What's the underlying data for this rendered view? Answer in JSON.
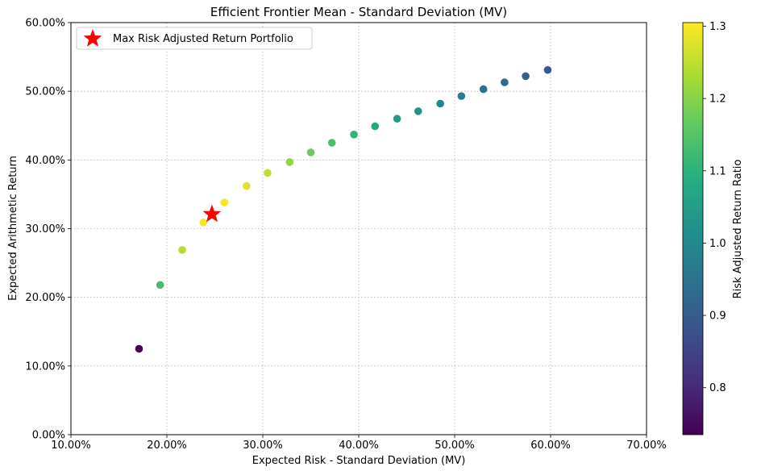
{
  "chart_data": {
    "type": "scatter",
    "title": "Efficient Frontier Mean - Standard Deviation (MV)",
    "xlabel": "Expected Risk - Standard Deviation (MV)",
    "ylabel": "Expected Arithmetic Return",
    "xlim": [
      0.1,
      0.7
    ],
    "ylim": [
      0.0,
      0.6
    ],
    "x_ticks": [
      {
        "value": 0.1,
        "label": "10.00%"
      },
      {
        "value": 0.2,
        "label": "20.00%"
      },
      {
        "value": 0.3,
        "label": "30.00%"
      },
      {
        "value": 0.4,
        "label": "40.00%"
      },
      {
        "value": 0.5,
        "label": "50.00%"
      },
      {
        "value": 0.6,
        "label": "60.00%"
      },
      {
        "value": 0.7,
        "label": "70.00%"
      }
    ],
    "y_ticks": [
      {
        "value": 0.0,
        "label": "0.00%"
      },
      {
        "value": 0.1,
        "label": "10.00%"
      },
      {
        "value": 0.2,
        "label": "20.00%"
      },
      {
        "value": 0.3,
        "label": "30.00%"
      },
      {
        "value": 0.4,
        "label": "40.00%"
      },
      {
        "value": 0.5,
        "label": "50.00%"
      },
      {
        "value": 0.6,
        "label": "60.00%"
      }
    ],
    "grid": true,
    "points": [
      {
        "x": 0.171,
        "y": 0.125,
        "ratio": 0.735
      },
      {
        "x": 0.193,
        "y": 0.218,
        "ratio": 1.13
      },
      {
        "x": 0.216,
        "y": 0.269,
        "ratio": 1.245
      },
      {
        "x": 0.238,
        "y": 0.309,
        "ratio": 1.3
      },
      {
        "x": 0.26,
        "y": 0.338,
        "ratio": 1.3
      },
      {
        "x": 0.283,
        "y": 0.362,
        "ratio": 1.28
      },
      {
        "x": 0.305,
        "y": 0.381,
        "ratio": 1.25
      },
      {
        "x": 0.328,
        "y": 0.397,
        "ratio": 1.21
      },
      {
        "x": 0.35,
        "y": 0.411,
        "ratio": 1.175
      },
      {
        "x": 0.372,
        "y": 0.425,
        "ratio": 1.14
      },
      {
        "x": 0.395,
        "y": 0.437,
        "ratio": 1.105
      },
      {
        "x": 0.417,
        "y": 0.449,
        "ratio": 1.075
      },
      {
        "x": 0.44,
        "y": 0.46,
        "ratio": 1.045
      },
      {
        "x": 0.462,
        "y": 0.471,
        "ratio": 1.02
      },
      {
        "x": 0.485,
        "y": 0.482,
        "ratio": 0.995
      },
      {
        "x": 0.507,
        "y": 0.493,
        "ratio": 0.97
      },
      {
        "x": 0.53,
        "y": 0.503,
        "ratio": 0.95
      },
      {
        "x": 0.552,
        "y": 0.513,
        "ratio": 0.93
      },
      {
        "x": 0.574,
        "y": 0.522,
        "ratio": 0.91
      },
      {
        "x": 0.597,
        "y": 0.531,
        "ratio": 0.89
      }
    ],
    "highlight": {
      "x": 0.247,
      "y": 0.321,
      "label": "Max Risk Adjusted Return Portfolio",
      "color": "#ff0000",
      "marker": "star"
    },
    "legend": {
      "placement": "top-left",
      "entries": [
        "Max Risk Adjusted Return Portfolio"
      ]
    },
    "colorbar": {
      "label": "Risk Adjusted Return Ratio",
      "range": [
        0.735,
        1.305
      ],
      "colormap": "viridis",
      "ticks": [
        {
          "value": 0.8,
          "label": "0.8"
        },
        {
          "value": 0.9,
          "label": "0.9"
        },
        {
          "value": 1.0,
          "label": "1.0"
        },
        {
          "value": 1.1,
          "label": "1.1"
        },
        {
          "value": 1.2,
          "label": "1.2"
        },
        {
          "value": 1.3,
          "label": "1.3"
        }
      ]
    }
  }
}
